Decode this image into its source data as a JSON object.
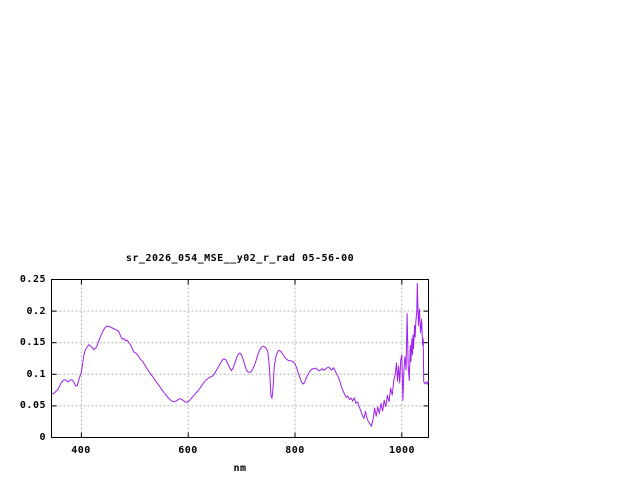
{
  "window": {
    "background": "#ffffff"
  },
  "chart_data": {
    "type": "line",
    "title": "sr_2026_054_MSE__y02_r_rad 05-56-00",
    "xlabel": "nm",
    "ylabel": "",
    "xlim": [
      344,
      1050
    ],
    "ylim": [
      0,
      0.25
    ],
    "xticks": [
      400,
      600,
      800,
      1000
    ],
    "xtick_labels": [
      "400",
      "600",
      "800",
      "1000"
    ],
    "yticks": [
      0,
      0.05,
      0.1,
      0.15,
      0.2,
      0.25
    ],
    "ytick_labels": [
      "0",
      "0.05",
      "0.1",
      "0.15",
      "0.2",
      "0.25"
    ],
    "grid": true,
    "legend": "none",
    "line_color": "#a020f0",
    "grid_color": "#b5b5b5",
    "axis_color": "#000000",
    "series": [
      {
        "name": "sr_2026_054_MSE__y02_r_rad",
        "points": [
          [
            344,
            0.068
          ],
          [
            347,
            0.0695
          ],
          [
            350,
            0.071
          ],
          [
            353,
            0.0735
          ],
          [
            356,
            0.076
          ],
          [
            359,
            0.081
          ],
          [
            362,
            0.086
          ],
          [
            365,
            0.0895
          ],
          [
            368,
            0.0915
          ],
          [
            371,
            0.091
          ],
          [
            374,
            0.0885
          ],
          [
            377,
            0.089
          ],
          [
            380,
            0.0915
          ],
          [
            383,
            0.091
          ],
          [
            386,
            0.0875
          ],
          [
            389,
            0.082
          ],
          [
            392,
            0.0815
          ],
          [
            395,
            0.0905
          ],
          [
            398,
            0.0985
          ],
          [
            400,
            0.104
          ],
          [
            402,
            0.115
          ],
          [
            404,
            0.127
          ],
          [
            406,
            0.135
          ],
          [
            408,
            0.14
          ],
          [
            411,
            0.1435
          ],
          [
            414,
            0.147
          ],
          [
            417,
            0.145
          ],
          [
            420,
            0.1425
          ],
          [
            423,
            0.139
          ],
          [
            426,
            0.141
          ],
          [
            429,
            0.1445
          ],
          [
            432,
            0.152
          ],
          [
            436,
            0.16
          ],
          [
            440,
            0.168
          ],
          [
            444,
            0.1735
          ],
          [
            448,
            0.1765
          ],
          [
            452,
            0.1755
          ],
          [
            456,
            0.174
          ],
          [
            460,
            0.1725
          ],
          [
            464,
            0.1705
          ],
          [
            468,
            0.1695
          ],
          [
            471,
            0.166
          ],
          [
            474,
            0.159
          ],
          [
            477,
            0.1555
          ],
          [
            480,
            0.1565
          ],
          [
            483,
            0.153
          ],
          [
            486,
            0.154
          ],
          [
            489,
            0.15
          ],
          [
            492,
            0.1465
          ],
          [
            495,
            0.1415
          ],
          [
            498,
            0.1355
          ],
          [
            502,
            0.1335
          ],
          [
            506,
            0.13
          ],
          [
            510,
            0.1245
          ],
          [
            514,
            0.121
          ],
          [
            518,
            0.116
          ],
          [
            522,
            0.11
          ],
          [
            526,
            0.105
          ],
          [
            530,
            0.1
          ],
          [
            534,
            0.0955
          ],
          [
            538,
            0.0905
          ],
          [
            542,
            0.086
          ],
          [
            546,
            0.0815
          ],
          [
            550,
            0.0765
          ],
          [
            554,
            0.072
          ],
          [
            558,
            0.0675
          ],
          [
            562,
            0.0635
          ],
          [
            566,
            0.06
          ],
          [
            570,
            0.0575
          ],
          [
            574,
            0.0565
          ],
          [
            578,
            0.058
          ],
          [
            582,
            0.0605
          ],
          [
            586,
            0.0615
          ],
          [
            590,
            0.059
          ],
          [
            594,
            0.0565
          ],
          [
            598,
            0.0555
          ],
          [
            602,
            0.058
          ],
          [
            606,
            0.062
          ],
          [
            610,
            0.066
          ],
          [
            614,
            0.07
          ],
          [
            618,
            0.0735
          ],
          [
            622,
            0.078
          ],
          [
            626,
            0.083
          ],
          [
            630,
            0.0875
          ],
          [
            634,
            0.0915
          ],
          [
            638,
            0.094
          ],
          [
            642,
            0.096
          ],
          [
            646,
            0.0975
          ],
          [
            650,
            0.102
          ],
          [
            654,
            0.108
          ],
          [
            658,
            0.114
          ],
          [
            662,
            0.12
          ],
          [
            666,
            0.124
          ],
          [
            670,
            0.1235
          ],
          [
            674,
            0.117
          ],
          [
            678,
            0.11
          ],
          [
            681,
            0.1055
          ],
          [
            684,
            0.11
          ],
          [
            688,
            0.119
          ],
          [
            691,
            0.127
          ],
          [
            694,
            0.132
          ],
          [
            697,
            0.1335
          ],
          [
            700,
            0.13
          ],
          [
            703,
            0.123
          ],
          [
            706,
            0.115
          ],
          [
            709,
            0.107
          ],
          [
            712,
            0.1035
          ],
          [
            715,
            0.103
          ],
          [
            718,
            0.104
          ],
          [
            722,
            0.11
          ],
          [
            726,
            0.119
          ],
          [
            730,
            0.13
          ],
          [
            734,
            0.139
          ],
          [
            738,
            0.1435
          ],
          [
            742,
            0.1445
          ],
          [
            746,
            0.141
          ],
          [
            749,
            0.136
          ],
          [
            752,
            0.112
          ],
          [
            755,
            0.0655
          ],
          [
            757,
            0.062
          ],
          [
            759,
            0.08
          ],
          [
            761,
            0.111
          ],
          [
            764,
            0.127
          ],
          [
            767,
            0.135
          ],
          [
            770,
            0.138
          ],
          [
            773,
            0.1365
          ],
          [
            776,
            0.133
          ],
          [
            780,
            0.128
          ],
          [
            784,
            0.124
          ],
          [
            788,
            0.1215
          ],
          [
            792,
            0.1215
          ],
          [
            796,
            0.12
          ],
          [
            800,
            0.117
          ],
          [
            804,
            0.108
          ],
          [
            808,
            0.097
          ],
          [
            812,
            0.088
          ],
          [
            815,
            0.0845
          ],
          [
            818,
            0.087
          ],
          [
            821,
            0.094
          ],
          [
            824,
            0.099
          ],
          [
            827,
            0.104
          ],
          [
            830,
            0.107
          ],
          [
            833,
            0.109
          ],
          [
            836,
            0.1085
          ],
          [
            839,
            0.11
          ],
          [
            842,
            0.1075
          ],
          [
            845,
            0.1055
          ],
          [
            848,
            0.107
          ],
          [
            851,
            0.109
          ],
          [
            854,
            0.106
          ],
          [
            857,
            0.108
          ],
          [
            860,
            0.11
          ],
          [
            863,
            0.1115
          ],
          [
            866,
            0.109
          ],
          [
            869,
            0.1065
          ],
          [
            872,
            0.1105
          ],
          [
            875,
            0.106
          ],
          [
            878,
            0.1
          ],
          [
            881,
            0.0955
          ],
          [
            884,
            0.089
          ],
          [
            887,
            0.08
          ],
          [
            890,
            0.0735
          ],
          [
            893,
            0.068
          ],
          [
            896,
            0.0635
          ],
          [
            899,
            0.0655
          ],
          [
            902,
            0.06
          ],
          [
            905,
            0.0625
          ],
          [
            908,
            0.0575
          ],
          [
            911,
            0.063
          ],
          [
            914,
            0.054
          ],
          [
            917,
            0.0565
          ],
          [
            920,
            0.0485
          ],
          [
            923,
            0.043
          ],
          [
            926,
            0.0355
          ],
          [
            929,
            0.03
          ],
          [
            932,
            0.0415
          ],
          [
            934,
            0.033
          ],
          [
            937,
            0.0255
          ],
          [
            940,
            0.022
          ],
          [
            943,
            0.0177
          ],
          [
            946,
            0.028
          ],
          [
            949,
            0.0467
          ],
          [
            952,
            0.0335
          ],
          [
            955,
            0.0487
          ],
          [
            958,
            0.038
          ],
          [
            961,
            0.054
          ],
          [
            964,
            0.042
          ],
          [
            967,
            0.059
          ],
          [
            970,
            0.0487
          ],
          [
            973,
            0.067
          ],
          [
            976,
            0.0565
          ],
          [
            979,
            0.078
          ],
          [
            982,
            0.067
          ],
          [
            985,
            0.0905
          ],
          [
            988,
            0.102
          ],
          [
            990,
            0.118
          ],
          [
            992,
            0.089
          ],
          [
            994,
            0.113
          ],
          [
            996,
            0.086
          ],
          [
            998,
            0.122
          ],
          [
            1000,
            0.131
          ],
          [
            1002,
            0.059
          ],
          [
            1004,
            0.107
          ],
          [
            1006,
            0.128
          ],
          [
            1008,
            0.107
          ],
          [
            1010,
            0.196
          ],
          [
            1012,
            0.113
          ],
          [
            1014,
            0.09
          ],
          [
            1016,
            0.146
          ],
          [
            1017,
            0.12
          ],
          [
            1019,
            0.156
          ],
          [
            1020,
            0.131
          ],
          [
            1021,
            0.162
          ],
          [
            1022,
            0.141
          ],
          [
            1024,
            0.177
          ],
          [
            1025,
            0.159
          ],
          [
            1026,
            0.18
          ],
          [
            1028,
            0.2
          ],
          [
            1029,
            0.244
          ],
          [
            1031,
            0.177
          ],
          [
            1033,
            0.203
          ],
          [
            1035,
            0.166
          ],
          [
            1037,
            0.187
          ],
          [
            1039,
            0.146
          ],
          [
            1040,
            0.156
          ],
          [
            1041,
            0.089
          ],
          [
            1043,
            0.085
          ],
          [
            1046,
            0.088
          ],
          [
            1048,
            0.084
          ],
          [
            1050,
            0.09
          ]
        ]
      }
    ]
  }
}
